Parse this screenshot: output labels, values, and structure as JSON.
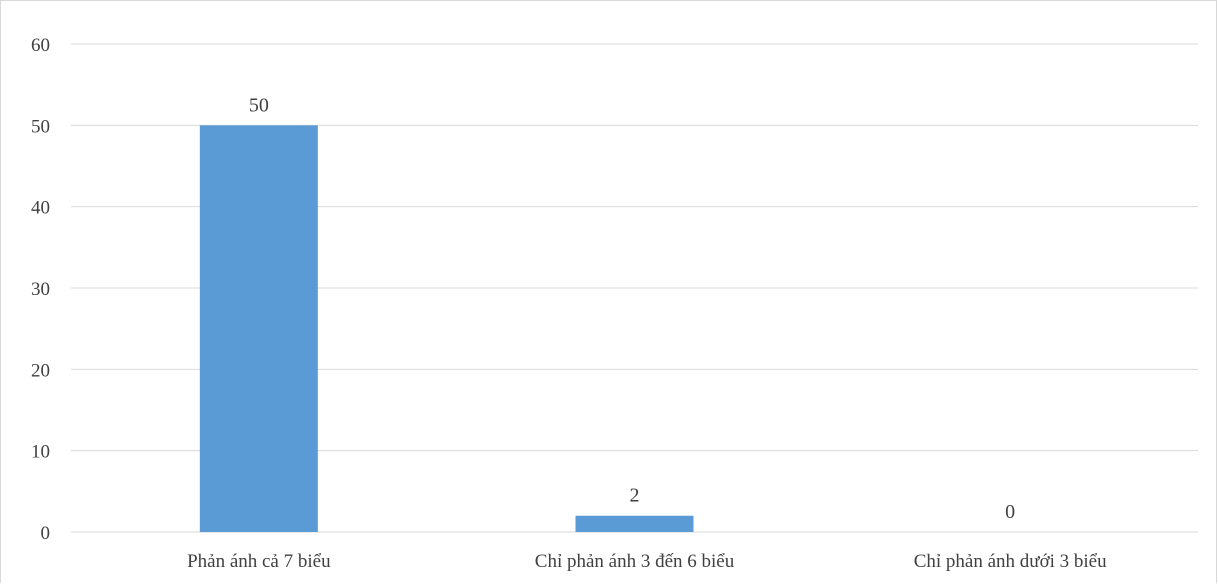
{
  "chart_data": {
    "type": "bar",
    "title": "",
    "xlabel": "",
    "ylabel": "",
    "categories": [
      "Phản ánh cả 7 biểu",
      "Chỉ phản ánh 3 đến 6 biểu",
      "Chỉ phản ánh dưới 3 biểu"
    ],
    "values": [
      50,
      2,
      0
    ],
    "data_labels": [
      "50",
      "2",
      "0"
    ],
    "ylim": [
      0,
      60
    ],
    "yticks": [
      0,
      10,
      20,
      30,
      40,
      50,
      60
    ],
    "grid": true,
    "legend": "none",
    "colors": {
      "bar": "#5b9bd5",
      "grid": "#d9d9d9",
      "text": "#404040"
    }
  }
}
